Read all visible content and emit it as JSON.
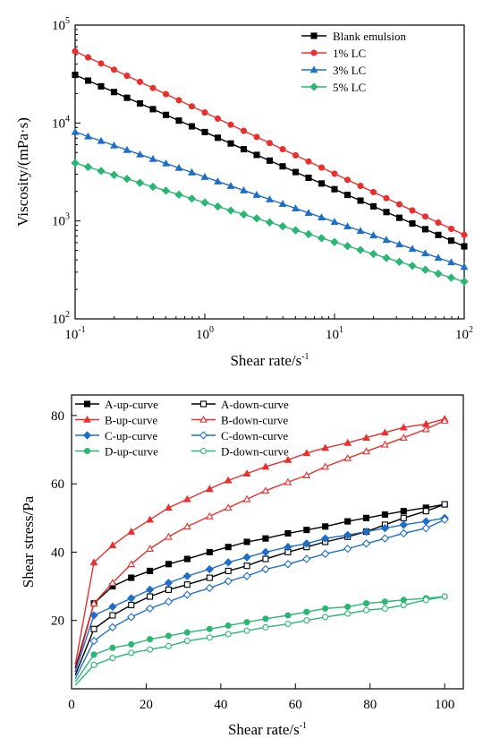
{
  "colors": {
    "black": "#000000",
    "red": "#e8312f",
    "blue": "#1f6ec9",
    "green": "#2bb673"
  },
  "chart_data": [
    {
      "type": "line",
      "xscale": "log",
      "yscale": "log",
      "xlabel": "Shear rate/s",
      "xlabel_exp": "-1",
      "ylabel": "Viscosity/(mPa·s)",
      "xlim": [
        0.1,
        100
      ],
      "ylim": [
        100,
        100000
      ],
      "xticks": [
        {
          "base": "10",
          "exp": "-1",
          "value": 0.1
        },
        {
          "base": "10",
          "exp": "0",
          "value": 1
        },
        {
          "base": "10",
          "exp": "1",
          "value": 10
        },
        {
          "base": "10",
          "exp": "2",
          "value": 100
        }
      ],
      "yticks": [
        {
          "base": "10",
          "exp": "2",
          "value": 100
        },
        {
          "base": "10",
          "exp": "3",
          "value": 1000
        },
        {
          "base": "10",
          "exp": "4",
          "value": 10000
        },
        {
          "base": "10",
          "exp": "5",
          "value": 100000
        }
      ],
      "legend_position": "top-right",
      "x_range": [
        0.1,
        100
      ],
      "n_points": 31,
      "series": [
        {
          "name": "Blank emulsion",
          "color": "#000000",
          "marker": "square",
          "y_start": 31000,
          "y_end": 550
        },
        {
          "name": "1% LC",
          "color": "#e8312f",
          "marker": "circle",
          "y_start": 54000,
          "y_end": 720
        },
        {
          "name": "3% LC",
          "color": "#1f6ec9",
          "marker": "triangle",
          "y_start": 8100,
          "y_end": 340
        },
        {
          "name": "5% LC",
          "color": "#2bb673",
          "marker": "diamond",
          "y_start": 3900,
          "y_end": 240
        }
      ]
    },
    {
      "type": "line",
      "xlabel": "Shear rate/s",
      "xlabel_exp": "-1",
      "ylabel": "Shear stress/Pa",
      "xlim": [
        0,
        105
      ],
      "ylim": [
        0,
        86
      ],
      "xticks": [
        0,
        20,
        40,
        60,
        80,
        100
      ],
      "yticks": [
        20,
        40,
        60,
        80
      ],
      "legend_position": "top-left",
      "x": [
        1,
        6,
        11,
        16,
        21,
        26,
        31,
        37,
        42,
        47,
        52,
        58,
        63,
        68,
        74,
        79,
        84,
        89,
        95,
        100
      ],
      "series": [
        {
          "name": "A-up-curve",
          "color": "#000000",
          "marker": "square",
          "filled": true,
          "values": [
            6,
            25,
            30,
            32.5,
            34.5,
            36.5,
            38,
            40,
            41.5,
            43,
            44,
            45.5,
            46.5,
            47.5,
            49,
            50,
            51,
            52,
            53,
            54
          ]
        },
        {
          "name": "A-down-curve",
          "color": "#000000",
          "marker": "square",
          "filled": false,
          "values": [
            4,
            17.5,
            21.5,
            24.5,
            27,
            29,
            30.5,
            32.5,
            34.5,
            36,
            38,
            40,
            41.5,
            43,
            44.5,
            46,
            48,
            50,
            52,
            54
          ]
        },
        {
          "name": "B-up-curve",
          "color": "#e8312f",
          "marker": "triangle",
          "filled": true,
          "values": [
            7,
            37,
            42,
            46,
            49.5,
            53,
            55.5,
            58.5,
            61,
            63,
            65,
            67,
            69,
            70.5,
            72,
            73.5,
            75,
            76.5,
            77.5,
            79
          ]
        },
        {
          "name": "B-down-curve",
          "color": "#e8312f",
          "marker": "triangle",
          "filled": false,
          "values": [
            5,
            25,
            31,
            36.5,
            41,
            44.5,
            47.5,
            50.5,
            53,
            55.5,
            58,
            60.5,
            62.5,
            65,
            67.5,
            69.5,
            71.5,
            73.5,
            76,
            78.5
          ]
        },
        {
          "name": "C-up-curve",
          "color": "#1f6ec9",
          "marker": "diamond",
          "filled": true,
          "values": [
            5,
            21.5,
            24,
            26.5,
            29,
            31,
            33,
            35,
            37,
            38.5,
            40,
            41.5,
            42.5,
            44,
            45,
            46,
            47,
            48,
            49,
            50
          ]
        },
        {
          "name": "C-down-curve",
          "color": "#1f6ec9",
          "marker": "diamond",
          "filled": false,
          "values": [
            3,
            14,
            18,
            21,
            23.5,
            25.5,
            27.5,
            29.5,
            31.5,
            33,
            35,
            36.5,
            38,
            39.5,
            41,
            42.5,
            44,
            45.5,
            47,
            49.5
          ]
        },
        {
          "name": "D-up-curve",
          "color": "#2bb673",
          "marker": "circle",
          "filled": true,
          "values": [
            2,
            10,
            12,
            13,
            14.5,
            15.5,
            16.5,
            17.5,
            18.5,
            19.5,
            20.5,
            21.5,
            22.5,
            23.5,
            24,
            25,
            25.5,
            26,
            26.5,
            27
          ]
        },
        {
          "name": "D-down-curve",
          "color": "#2bb673",
          "marker": "circle",
          "filled": false,
          "values": [
            1,
            7,
            9,
            10.5,
            11.5,
            12.5,
            14,
            15,
            16,
            17,
            18,
            19,
            20,
            21,
            22,
            23,
            23.5,
            24.5,
            26,
            27
          ]
        }
      ]
    }
  ]
}
